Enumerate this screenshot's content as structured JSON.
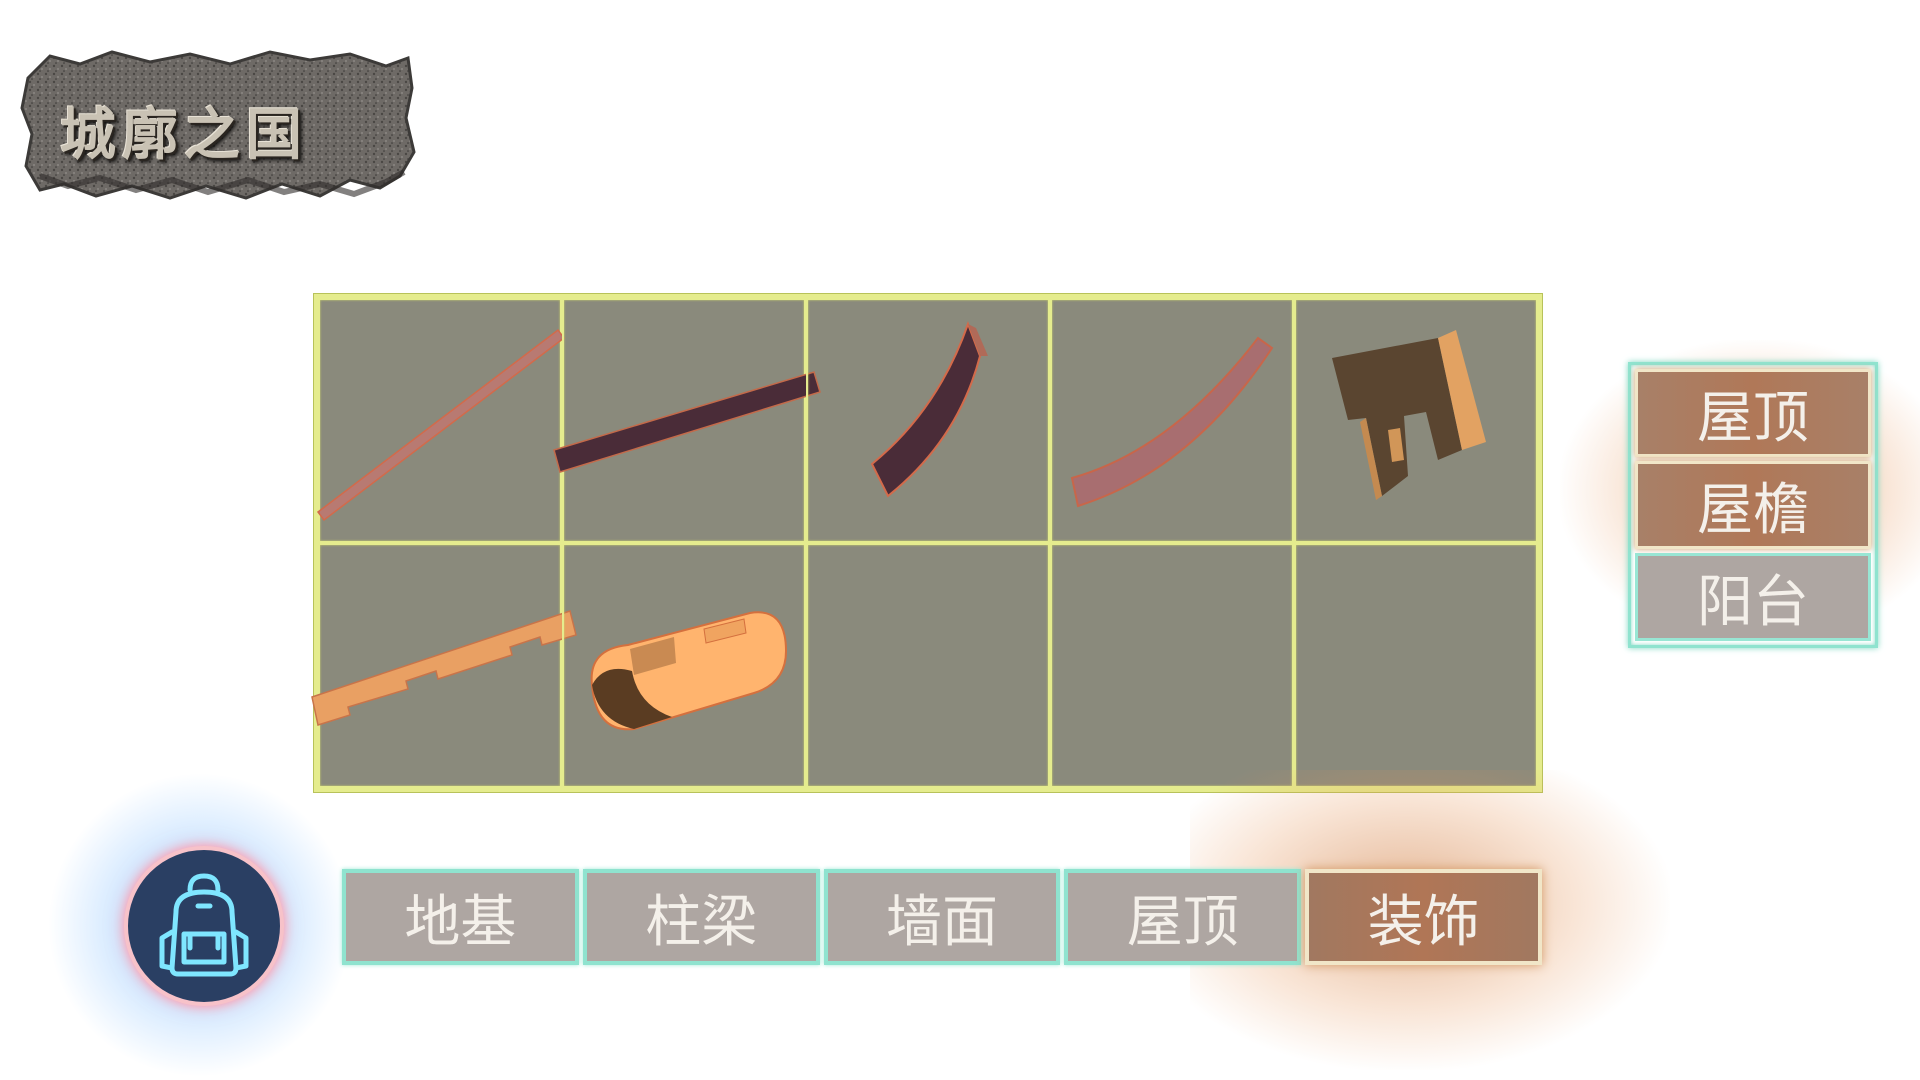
{
  "app": {
    "title": "城廓之国"
  },
  "inventory": {
    "rows": 2,
    "columns": 5,
    "items": [
      {
        "name": "thin-slanted-beam-item",
        "color": "#b87a72"
      },
      {
        "name": "dark-straight-beam-item",
        "color": "#4a2c38"
      },
      {
        "name": "dark-curved-eave-item",
        "color": "#4a2c38"
      },
      {
        "name": "curved-eave-item",
        "color": "#a86e70"
      },
      {
        "name": "balcony-frame-item",
        "color": "#5a4530"
      },
      {
        "name": "notched-plank-item",
        "color": "#e9a063"
      },
      {
        "name": "round-log-item",
        "color": "#ffb46e"
      },
      {
        "name": "empty-slot",
        "color": ""
      },
      {
        "name": "empty-slot",
        "color": ""
      },
      {
        "name": "empty-slot",
        "color": ""
      }
    ]
  },
  "side_menu": {
    "items": [
      {
        "label": "屋顶",
        "active": true
      },
      {
        "label": "屋檐",
        "active": true
      },
      {
        "label": "阳台",
        "active": false
      }
    ]
  },
  "backpack": {
    "icon": "backpack-icon"
  },
  "tabs": {
    "items": [
      {
        "label": "地基",
        "active": false
      },
      {
        "label": "柱梁",
        "active": false
      },
      {
        "label": "墙面",
        "active": false
      },
      {
        "label": "屋顶",
        "active": false
      },
      {
        "label": "装饰",
        "active": true
      }
    ]
  },
  "colors": {
    "grid_background": "#8a8a7c",
    "grid_lines": "#e5ec8e",
    "tab_border": "#8fe3cf",
    "active_tab": "#b07656",
    "backpack_glow": "#3c96ff"
  }
}
